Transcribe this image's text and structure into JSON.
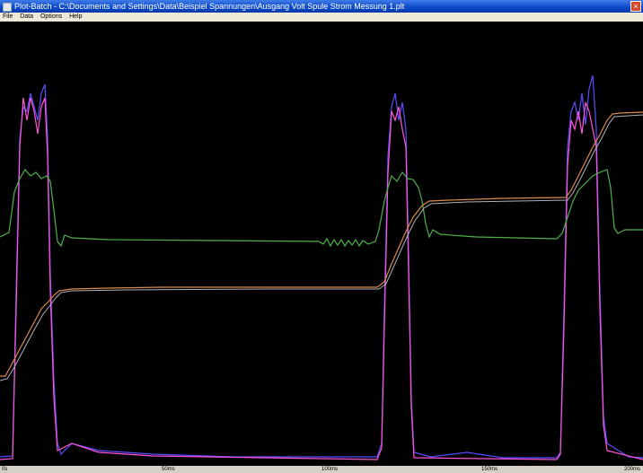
{
  "window": {
    "title": "Plot-Batch - C:\\Documents and Settings\\Data\\Beispiel Spannungen\\Ausgang Volt Spule Strom Messung 1.plt",
    "close_glyph": "×"
  },
  "menu": {
    "items": [
      "File",
      "Data",
      "Options",
      "Help"
    ]
  },
  "x_axis": {
    "tick_labels": [
      "0s",
      "50ms",
      "100ms",
      "150ms",
      "200ms"
    ]
  },
  "series_colors": {
    "blue": "#5a4cff",
    "magenta": "#ff55d6",
    "green": "#4fb04a",
    "orange": "#d98a4a",
    "gray": "#b0b0b8"
  }
}
